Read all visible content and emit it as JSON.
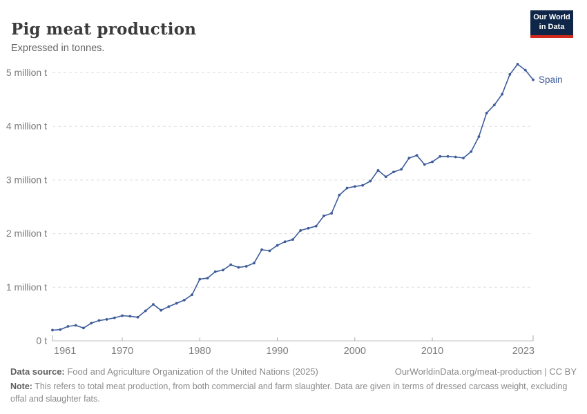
{
  "header": {
    "title": "Pig meat production",
    "subtitle": "Expressed in tonnes.",
    "logo_line1": "Our World",
    "logo_line2": "in Data",
    "logo_bg": "#0f2648",
    "logo_accent": "#d12a1d"
  },
  "chart_data": {
    "type": "line",
    "title": "Pig meat production",
    "unit": "tonnes",
    "grid": "horizontal-dashed",
    "legend_position": "end-of-line-label",
    "xlim": [
      1961,
      2023
    ],
    "ylim": [
      0,
      5350000
    ],
    "x_ticks": [
      "1961",
      "1970",
      "1980",
      "1990",
      "2000",
      "2010",
      "2023"
    ],
    "x_tick_years": [
      1961,
      1970,
      1980,
      1990,
      2000,
      2010,
      2023
    ],
    "y_ticks": [
      {
        "value": 0,
        "label": "0 t"
      },
      {
        "value": 1000000,
        "label": "1 million t"
      },
      {
        "value": 2000000,
        "label": "2 million t"
      },
      {
        "value": 3000000,
        "label": "3 million t"
      },
      {
        "value": 4000000,
        "label": "4 million t"
      },
      {
        "value": 5000000,
        "label": "5 million t"
      }
    ],
    "series": [
      {
        "name": "Spain",
        "color": "#3d5c99",
        "x": [
          1961,
          1962,
          1963,
          1964,
          1965,
          1966,
          1967,
          1968,
          1969,
          1970,
          1971,
          1972,
          1973,
          1974,
          1975,
          1976,
          1977,
          1978,
          1979,
          1980,
          1981,
          1982,
          1983,
          1984,
          1985,
          1986,
          1987,
          1988,
          1989,
          1990,
          1991,
          1992,
          1993,
          1994,
          1995,
          1996,
          1997,
          1998,
          1999,
          2000,
          2001,
          2002,
          2003,
          2004,
          2005,
          2006,
          2007,
          2008,
          2009,
          2010,
          2011,
          2012,
          2013,
          2014,
          2015,
          2016,
          2017,
          2018,
          2019,
          2020,
          2021,
          2022,
          2023
        ],
        "values": [
          200000,
          210000,
          270000,
          290000,
          240000,
          330000,
          380000,
          400000,
          430000,
          470000,
          460000,
          440000,
          560000,
          680000,
          570000,
          640000,
          700000,
          760000,
          860000,
          1150000,
          1170000,
          1290000,
          1320000,
          1420000,
          1370000,
          1390000,
          1450000,
          1700000,
          1680000,
          1780000,
          1850000,
          1890000,
          2060000,
          2100000,
          2140000,
          2330000,
          2380000,
          2720000,
          2850000,
          2880000,
          2900000,
          2980000,
          3180000,
          3060000,
          3150000,
          3200000,
          3410000,
          3460000,
          3290000,
          3340000,
          3440000,
          3440000,
          3430000,
          3410000,
          3530000,
          3810000,
          4250000,
          4400000,
          4600000,
          4970000,
          5160000,
          5050000,
          4870000
        ]
      }
    ],
    "colors": {
      "grid": "#dedede",
      "axis": "#c2c2c2",
      "tick": "#ababab",
      "tick_label": "#7b7b7b"
    }
  },
  "footer": {
    "data_source_label": "Data source:",
    "data_source_text": " Food and Agriculture Organization of the United Nations (2025)",
    "link": "OurWorldinData.org/meat-production | CC BY",
    "note_label": "Note:",
    "note_text": " This refers to total meat production, from both commercial and farm slaughter. Data are given in terms of dressed carcass weight, excluding offal and slaughter fats."
  }
}
